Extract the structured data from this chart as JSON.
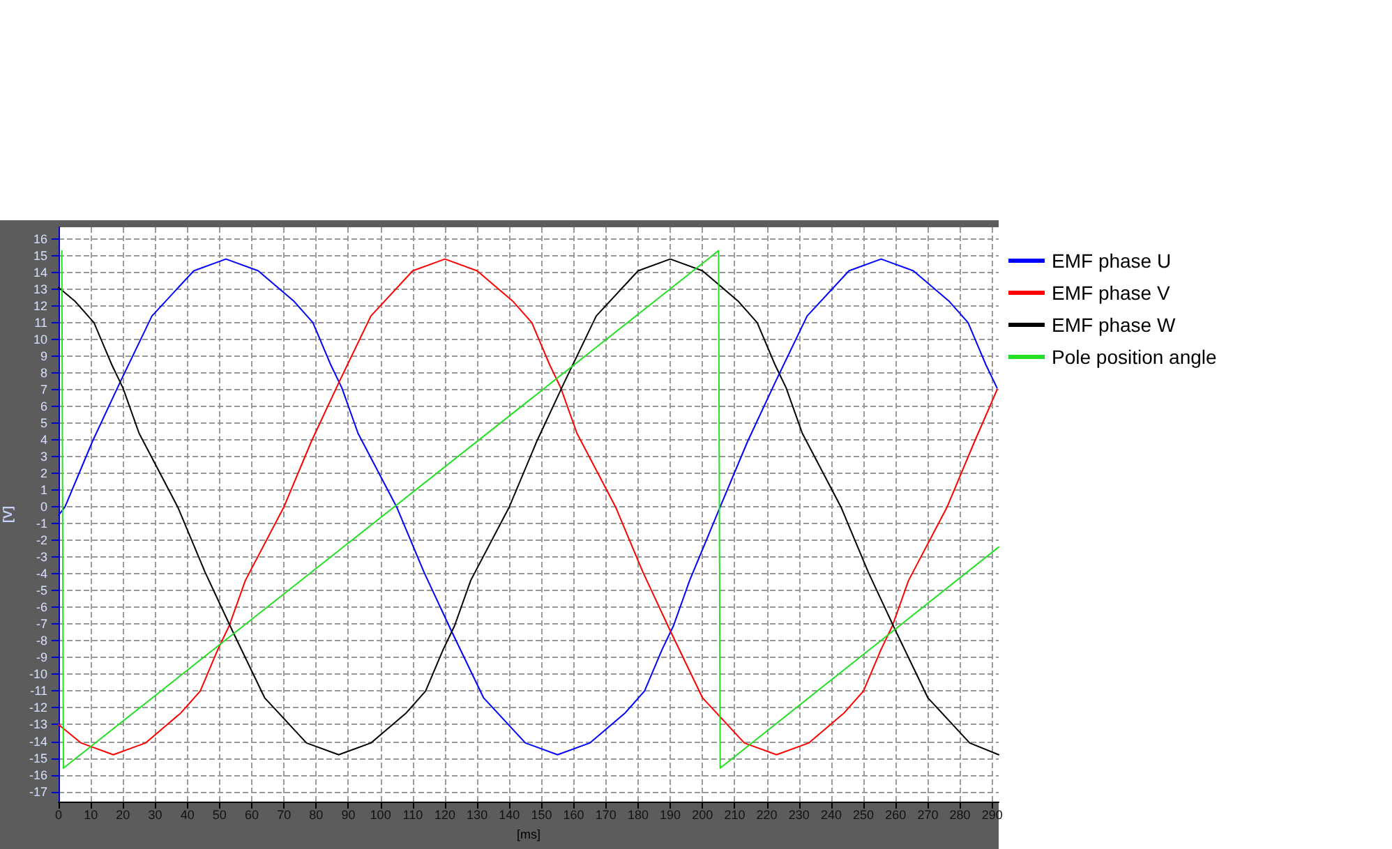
{
  "chart_data": {
    "type": "line",
    "xlabel": "[ms]",
    "ylabel": "[V]",
    "xlim": [
      0,
      292
    ],
    "xticks": [
      0,
      10,
      20,
      30,
      40,
      50,
      60,
      70,
      80,
      90,
      100,
      110,
      120,
      130,
      140,
      150,
      160,
      170,
      180,
      190,
      200,
      210,
      220,
      230,
      240,
      250,
      260,
      270,
      280,
      290
    ],
    "ylim": [
      -17.6,
      16.7
    ],
    "yticks": [
      -17,
      -16,
      -15,
      -14,
      -13,
      -12,
      -11,
      -10,
      -9,
      -8,
      -7,
      -6,
      -5,
      -4,
      -3,
      -2,
      -1,
      0,
      1,
      2,
      3,
      4,
      5,
      6,
      7,
      8,
      9,
      10,
      11,
      12,
      13,
      14,
      15,
      16
    ],
    "grid": true,
    "legend": "right",
    "marker": "none",
    "line_style": "solid",
    "series": [
      {
        "name": "EMF phase U",
        "color": "#0000ff",
        "x": [
          0,
          2,
          10.5,
          19,
          29,
          42,
          52,
          62,
          73,
          79,
          84.5,
          88,
          93,
          105,
          113.5,
          122,
          132,
          145,
          155,
          165,
          176,
          182,
          187.5,
          191,
          196,
          205.5,
          214,
          222.5,
          232.5,
          245.5,
          255.5,
          265.5,
          276.5,
          282.5,
          288,
          291.5
        ],
        "values": [
          -0.5,
          0,
          3.9,
          7.4,
          11.4,
          14.1,
          14.8,
          14.1,
          12.3,
          11,
          8.5,
          7.1,
          4.4,
          0,
          -3.9,
          -7.4,
          -11.4,
          -14.1,
          -14.8,
          -14.1,
          -12.3,
          -11,
          -8.5,
          -7.1,
          -4.4,
          0,
          3.9,
          7.4,
          11.4,
          14.1,
          14.8,
          14.1,
          12.3,
          11,
          8.5,
          7.1
        ]
      },
      {
        "name": "EMF phase V",
        "color": "#ff0000",
        "x": [
          0,
          7,
          17,
          27,
          38,
          44,
          49.5,
          53,
          58,
          70,
          78.5,
          87,
          97,
          110,
          120,
          130,
          141,
          147,
          152.5,
          156,
          161,
          173,
          181.5,
          190,
          200,
          213,
          223,
          233,
          244,
          250,
          255.5,
          259,
          264,
          276,
          284.5,
          291.5
        ],
        "values": [
          -13,
          -14.1,
          -14.8,
          -14.1,
          -12.3,
          -11,
          -8.5,
          -7.1,
          -4.4,
          0,
          3.9,
          7.4,
          11.4,
          14.1,
          14.8,
          14.1,
          12.3,
          11,
          8.5,
          7.1,
          4.4,
          0,
          -3.9,
          -7.4,
          -11.4,
          -14.1,
          -14.8,
          -14.1,
          -12.3,
          -11,
          -8.5,
          -7.1,
          -4.4,
          0,
          3.9,
          7
        ]
      },
      {
        "name": "EMF phase W",
        "color": "#000000",
        "x": [
          0,
          5,
          11,
          16.5,
          20,
          25,
          37,
          45.5,
          54,
          64,
          77,
          87,
          97,
          108,
          114,
          119.5,
          123,
          128,
          140,
          148.5,
          157,
          167,
          180,
          190,
          200,
          211,
          217,
          222.5,
          226,
          231,
          243,
          251.5,
          260,
          270,
          283,
          292
        ],
        "values": [
          13.1,
          12.3,
          11,
          8.5,
          7.1,
          4.4,
          0,
          -3.9,
          -7.4,
          -11.4,
          -14.1,
          -14.8,
          -14.1,
          -12.3,
          -11,
          -8.5,
          -7.1,
          -4.4,
          0,
          3.9,
          7.4,
          11.4,
          14.1,
          14.8,
          14.1,
          12.3,
          11,
          8.5,
          7.1,
          4.4,
          0,
          -3.9,
          -7.4,
          -11.4,
          -14.1,
          -14.8
        ]
      },
      {
        "name": "Pole position angle",
        "color": "#22e022",
        "x": [
          1,
          1.5,
          205,
          205.5,
          292
        ],
        "values": [
          15.3,
          -15.6,
          15.3,
          -15.6,
          -2.4
        ]
      }
    ]
  }
}
